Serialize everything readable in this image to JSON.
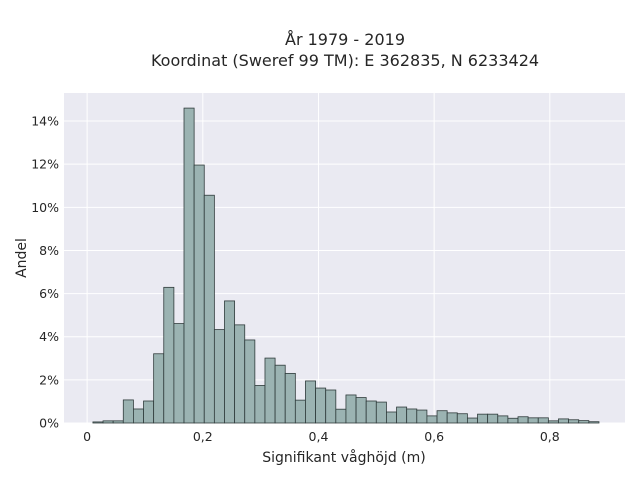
{
  "chart_data": {
    "type": "bar",
    "title_line1": "År 1979 - 2019",
    "title_line2": "Koordinat (Sweref 99 TM): E 362835, N 6233424",
    "xlabel": "Signifikant våghöjd (m)",
    "ylabel": "Andel",
    "xlim": [
      -0.04,
      0.93
    ],
    "ylim": [
      0,
      0.153
    ],
    "xticks": [
      0,
      0.2,
      0.4,
      0.6,
      0.8
    ],
    "xtick_labels": [
      "0",
      "0,2",
      "0,4",
      "0,6",
      "0,8"
    ],
    "yticks": [
      0,
      0.02,
      0.04,
      0.06,
      0.08,
      0.1,
      0.12,
      0.14
    ],
    "ytick_labels": [
      "0%",
      "2%",
      "4%",
      "6%",
      "8%",
      "10%",
      "12%",
      "14%"
    ],
    "grid": true,
    "bin_start": 0.01,
    "bin_width": 0.0175,
    "values": [
      0.0005,
      0.001,
      0.001,
      0.0107,
      0.0065,
      0.0102,
      0.0321,
      0.0629,
      0.0461,
      0.146,
      0.1196,
      0.1056,
      0.0433,
      0.0566,
      0.0455,
      0.0385,
      0.0174,
      0.0301,
      0.0268,
      0.023,
      0.0106,
      0.0195,
      0.0162,
      0.0153,
      0.0064,
      0.013,
      0.0118,
      0.0102,
      0.0097,
      0.0051,
      0.0074,
      0.0065,
      0.006,
      0.0033,
      0.0057,
      0.0047,
      0.0043,
      0.0023,
      0.0041,
      0.0041,
      0.0033,
      0.0022,
      0.0029,
      0.0024,
      0.0024,
      0.001,
      0.0019,
      0.0015,
      0.0011,
      0.0006
    ],
    "colors": {
      "background": "#eaeaf2",
      "bar_fill": "#9bb3b2",
      "bar_edge": "#2f3b3b",
      "grid": "#ffffff"
    }
  }
}
